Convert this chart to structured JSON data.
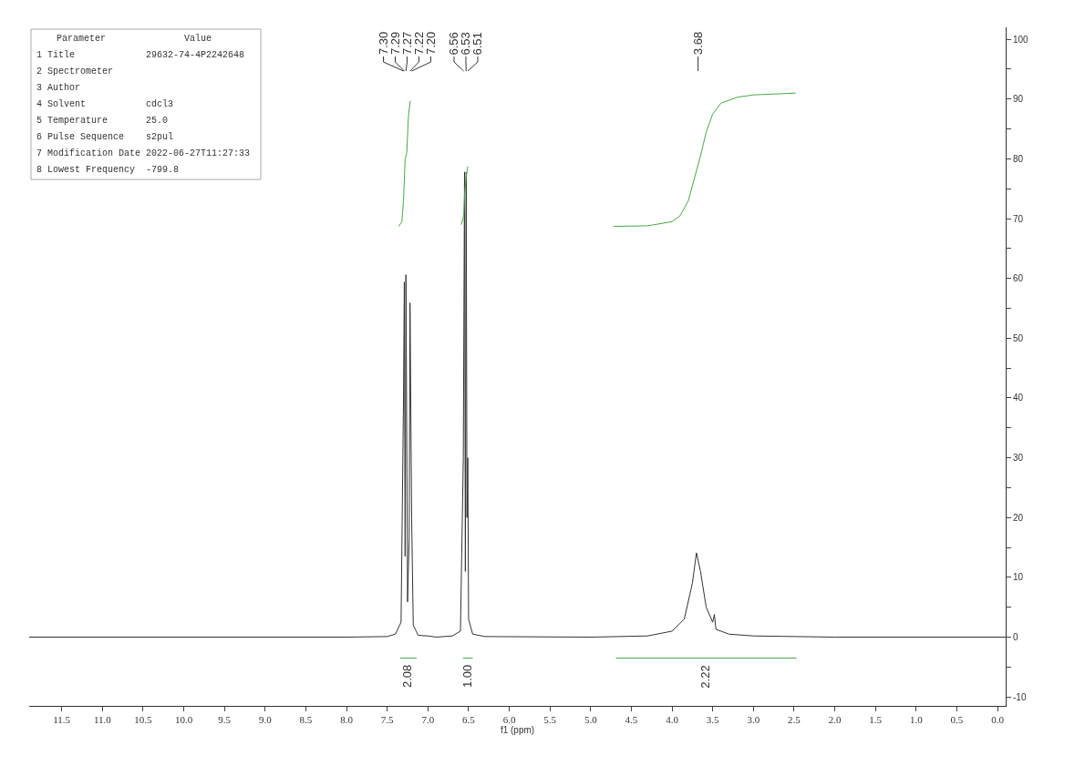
{
  "chart_data": {
    "type": "line",
    "xlabel": "f1 (ppm)",
    "xlim": [
      11.9,
      -0.1
    ],
    "xticks": [
      11.5,
      {
        "value": 11,
        "label": "11.0"
      },
      10.5,
      {
        "value": 10,
        "label": "10.0"
      },
      9.5,
      {
        "value": 9,
        "label": "9.0"
      },
      8.5,
      {
        "value": 8,
        "label": "8.0"
      },
      7.5,
      {
        "value": 7,
        "label": "7.0"
      },
      6.5,
      {
        "value": 6,
        "label": "6.0"
      },
      5.5,
      {
        "value": 5,
        "label": "5.0"
      },
      4.5,
      {
        "value": 4,
        "label": "4.0"
      },
      3.5,
      {
        "value": 3,
        "label": "3.0"
      },
      2.5,
      {
        "value": 2,
        "label": "2.0"
      },
      1.5,
      {
        "value": 1,
        "label": "1.0"
      },
      0.5,
      {
        "value": 0,
        "label": "0.0"
      }
    ],
    "ylim": [
      -11.5,
      102
    ],
    "yticks": [
      -10,
      {
        "value": -5,
        "label": null
      },
      0,
      {
        "value": 5,
        "label": null
      },
      10,
      {
        "value": 15,
        "label": null
      },
      20,
      {
        "value": 25,
        "label": null
      },
      30,
      {
        "value": 35,
        "label": null
      },
      40,
      {
        "value": 45,
        "label": null
      },
      50,
      {
        "value": 55,
        "label": null
      },
      60,
      {
        "value": 65,
        "label": null
      },
      70,
      {
        "value": 75,
        "label": null
      },
      80,
      {
        "value": 85,
        "label": null
      },
      90,
      {
        "value": 95,
        "label": null
      },
      100
    ],
    "series": [
      {
        "color": "#333333",
        "x": [
          11.9,
          8.0,
          7.5,
          7.4,
          7.33,
          7.3,
          7.29,
          7.28,
          7.27,
          7.25,
          7.23,
          7.22,
          7.2,
          7.18,
          7.12,
          7.0,
          6.9,
          6.7,
          6.6,
          6.565,
          6.55,
          6.54,
          6.53,
          6.52,
          6.51,
          6.5,
          6.45,
          6.3,
          5.0,
          4.3,
          4.0,
          3.85,
          3.75,
          3.7,
          3.65,
          3.58,
          3.5,
          3.48,
          3.46,
          3.3,
          3.0,
          2.0,
          -0.1
        ],
        "values": [
          0,
          0,
          0.1,
          0.5,
          2.5,
          40,
          59.4,
          13.5,
          60.6,
          5.9,
          16.7,
          55.9,
          20,
          2,
          0.3,
          0.2,
          0,
          0.2,
          1,
          30,
          77.8,
          11,
          77.8,
          20,
          30,
          3,
          0.5,
          0.1,
          0,
          0.2,
          1,
          3,
          9,
          14.1,
          11,
          5,
          2.5,
          3.8,
          1.3,
          0.5,
          0.2,
          0,
          0
        ]
      },
      {
        "color": "#4aa84a",
        "x": [
          7.36,
          7.32,
          7.3,
          7.28,
          7.26,
          7.24,
          7.22,
          7.21
        ],
        "values": [
          68.7,
          69.5,
          73,
          80,
          81,
          87,
          89.5,
          89.7
        ]
      },
      {
        "color": "#4aa84a",
        "x": [
          6.59,
          6.56,
          6.55,
          6.53,
          6.51
        ],
        "values": [
          69,
          70.5,
          74,
          77,
          78.7
        ]
      },
      {
        "color": "#4aa84a",
        "x": [
          4.72,
          4.3,
          4.0,
          3.9,
          3.8,
          3.72,
          3.65,
          3.58,
          3.5,
          3.4,
          3.2,
          3.0,
          2.48
        ],
        "values": [
          68.7,
          68.8,
          69.5,
          70.5,
          73,
          77,
          80.5,
          84.5,
          87.5,
          89.3,
          90.3,
          90.7,
          91
        ]
      },
      {
        "color": "#4aa84a",
        "x": [
          7.34,
          7.14
        ],
        "values": [
          -3.5,
          -3.5
        ]
      },
      {
        "color": "#4aa84a",
        "x": [
          6.57,
          6.45
        ],
        "values": [
          -3.5,
          -3.5
        ]
      },
      {
        "color": "#4aa84a",
        "x": [
          4.69,
          2.47
        ],
        "values": [
          -3.5,
          -3.5
        ]
      }
    ],
    "annotations": [
      "Parameter  Value",
      "1 Title  29632-74-4P2242648",
      "2 Spectrometer",
      "3 Author",
      "4 Solvent  cdcl3",
      "5 Temperature  25.0",
      "6 Pulse Sequence  s2pul",
      "7 Modification Date  2022-06-27T11:27:33",
      "8 Lowest Frequency  -799.8",
      {
        "text": "7.30",
        "x": 7.3
      },
      {
        "text": "7.29",
        "x": 7.29
      },
      {
        "text": "7.27",
        "x": 7.27
      },
      {
        "text": "7.22",
        "x": 7.22
      },
      {
        "text": "7.20",
        "x": 7.2
      },
      {
        "text": "6.56",
        "x": 6.56
      },
      {
        "text": "6.53",
        "x": 6.53
      },
      {
        "text": "6.51",
        "x": 6.51
      },
      {
        "text": "3.68",
        "x": 3.68
      },
      {
        "text": "2.08",
        "x": 7.25,
        "y": -3.5
      },
      {
        "text": "1.00",
        "x": 6.51,
        "y": -3.5
      },
      {
        "text": "2.22",
        "x": 3.59,
        "y": -3.5
      }
    ]
  }
}
